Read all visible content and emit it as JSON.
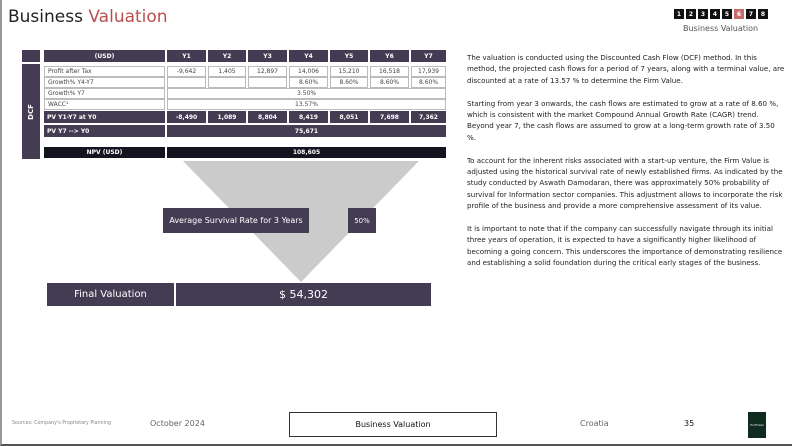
{
  "header": {
    "title_part1": "Business ",
    "title_part2": "Valuation",
    "nav": [
      "1",
      "2",
      "3",
      "4",
      "5",
      "6",
      "7",
      "8"
    ],
    "active_nav": "6",
    "nav_label": "Business Valuation",
    "accent_color": "#b9504f"
  },
  "table": {
    "side_label": "DCF",
    "columns": [
      "(USD)",
      "Y1",
      "Y2",
      "Y3",
      "Y4",
      "Y5",
      "Y6",
      "Y7"
    ],
    "profit": {
      "label": "Profit after Tax",
      "values": [
        "-9,642",
        "1,405",
        "12,897",
        "14,006",
        "15,210",
        "16,518",
        "17,939"
      ]
    },
    "growth_y4_y7": {
      "label": "Growth% Y4-Y7",
      "values": [
        "",
        "",
        "",
        "8.60%",
        "8.60%",
        "8.60%",
        "8.60%"
      ]
    },
    "growth_y7": {
      "label": "Growth% Y7",
      "value": "3.50%"
    },
    "wacc": {
      "label": "WACC¹",
      "value": "13.57%"
    },
    "pv": {
      "label": "PV Y1-Y7 at Y0",
      "values": [
        "-8,490",
        "1,089",
        "8,804",
        "8,419",
        "8,051",
        "7,698",
        "7,362"
      ]
    },
    "pv_terminal": {
      "label": "PV Y7 --> Y0",
      "value": "75,671"
    },
    "npv": {
      "label": "NPV (USD)",
      "value": "108,605"
    }
  },
  "survival": {
    "label": "Average Survival Rate for 3 Years",
    "value": "50%"
  },
  "final": {
    "label": "Final Valuation",
    "value": "$ 54,302"
  },
  "paragraphs": [
    "The valuation is conducted using the Discounted Cash Flow (DCF) method. In this method, the projected cash flows for a period of 7 years, along with a terminal value, are discounted at a rate of 13.57 % to determine the Firm Value.",
    "Starting from year 3 onwards, the cash flows are estimated to grow at a rate of 8.60 %, which is consistent with the market Compound Annual Growth Rate (CAGR) trend. Beyond year 7, the cash flows are assumed to grow at a long-term growth rate of 3.50 %.",
    "To account for the inherent risks associated with a start-up venture, the Firm Value is adjusted using the historical survival rate of newly established firms. As indicated by the study conducted by Aswath Damodaran, there was approximately 50% probability of survival for Information sector companies. This adjustment allows to incorporate the risk profile of the business and provide a more comprehensive assessment of its value.",
    "It is important to note that if the company can successfully navigate through its initial three years of operation, it is expected to have a significantly higher likelihood of becoming a going concern. This underscores the importance of demonstrating resilience and establishing a solid foundation during the critical early stages of the business."
  ],
  "footer": {
    "source": "Sources: Company's Proprietary Planning",
    "date": "October 2024",
    "section": "Business Valuation",
    "country": "Croatia",
    "page": "35",
    "logo_text": "EcoThread"
  }
}
